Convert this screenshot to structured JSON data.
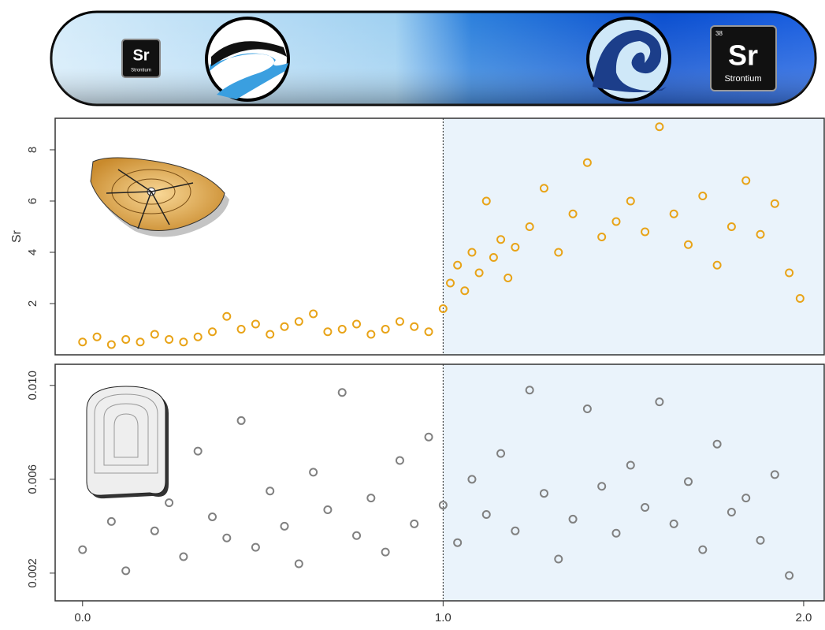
{
  "banner": {
    "left_element": {
      "symbol": "Sr",
      "name": "Strontium"
    },
    "right_element": {
      "number": "38",
      "symbol": "Sr",
      "name": "Strontium"
    }
  },
  "chart_data": [
    {
      "type": "scatter",
      "y_label": "Sr",
      "color": "#e8a317",
      "vline": 1,
      "shade_after_vline": true,
      "xlim": [
        -0.076,
        2.057
      ],
      "ylim": [
        0,
        9.23
      ],
      "yticks": [
        2,
        4,
        6,
        8
      ],
      "x": [
        0.0,
        0.04,
        0.08,
        0.12,
        0.16,
        0.2,
        0.24,
        0.28,
        0.32,
        0.36,
        0.4,
        0.44,
        0.48,
        0.52,
        0.56,
        0.6,
        0.64,
        0.68,
        0.72,
        0.76,
        0.8,
        0.84,
        0.88,
        0.92,
        0.96,
        1.0,
        1.02,
        1.04,
        1.06,
        1.08,
        1.1,
        1.12,
        1.14,
        1.16,
        1.18,
        1.2,
        1.24,
        1.28,
        1.32,
        1.36,
        1.4,
        1.44,
        1.48,
        1.52,
        1.56,
        1.6,
        1.64,
        1.68,
        1.72,
        1.76,
        1.8,
        1.84,
        1.88,
        1.92,
        1.96,
        1.99
      ],
      "values": [
        0.5,
        0.7,
        0.4,
        0.6,
        0.5,
        0.8,
        0.6,
        0.5,
        0.7,
        0.9,
        1.5,
        1.0,
        1.2,
        0.8,
        1.1,
        1.3,
        1.6,
        0.9,
        1.0,
        1.2,
        0.8,
        1.0,
        1.3,
        1.1,
        0.9,
        1.8,
        2.8,
        3.5,
        2.5,
        4.0,
        3.2,
        6.0,
        3.8,
        4.5,
        3.0,
        4.2,
        5.0,
        6.5,
        4.0,
        5.5,
        7.5,
        4.6,
        5.2,
        6.0,
        4.8,
        8.9,
        5.5,
        4.3,
        6.2,
        3.5,
        5.0,
        6.8,
        4.7,
        5.9,
        3.2,
        2.2
      ]
    },
    {
      "type": "scatter",
      "color": "#808080",
      "vline": 1,
      "shade_after_vline": true,
      "xlim": [
        -0.076,
        2.057
      ],
      "ylim": [
        0.00082,
        0.0109
      ],
      "yticks": [
        0.002,
        0.006,
        {
          "value": 0.01,
          "label": "0.010"
        }
      ],
      "xticks": [
        {
          "value": 0,
          "label": "0.0"
        },
        {
          "value": 1,
          "label": "1.0"
        },
        {
          "value": 2,
          "label": "2.0"
        }
      ],
      "x": [
        0.0,
        0.04,
        0.08,
        0.12,
        0.16,
        0.2,
        0.24,
        0.28,
        0.32,
        0.36,
        0.4,
        0.44,
        0.48,
        0.52,
        0.56,
        0.6,
        0.64,
        0.68,
        0.72,
        0.76,
        0.8,
        0.84,
        0.88,
        0.92,
        0.96,
        1.0,
        1.04,
        1.08,
        1.12,
        1.16,
        1.2,
        1.24,
        1.28,
        1.32,
        1.36,
        1.4,
        1.44,
        1.48,
        1.52,
        1.56,
        1.6,
        1.64,
        1.68,
        1.72,
        1.76,
        1.8,
        1.84,
        1.88,
        1.92,
        1.96
      ],
      "values": [
        0.003,
        0.0058,
        0.0042,
        0.0021,
        0.0065,
        0.0038,
        0.005,
        0.0027,
        0.0072,
        0.0044,
        0.0035,
        0.0085,
        0.0031,
        0.0055,
        0.004,
        0.0024,
        0.0063,
        0.0047,
        0.0097,
        0.0036,
        0.0052,
        0.0029,
        0.0068,
        0.0041,
        0.0078,
        0.0049,
        0.0033,
        0.006,
        0.0045,
        0.0071,
        0.0038,
        0.0098,
        0.0054,
        0.0026,
        0.0043,
        0.009,
        0.0057,
        0.0037,
        0.0066,
        0.0048,
        0.0093,
        0.0041,
        0.0059,
        0.003,
        0.0075,
        0.0046,
        0.0052,
        0.0034,
        0.0062,
        0.0019
      ]
    }
  ]
}
